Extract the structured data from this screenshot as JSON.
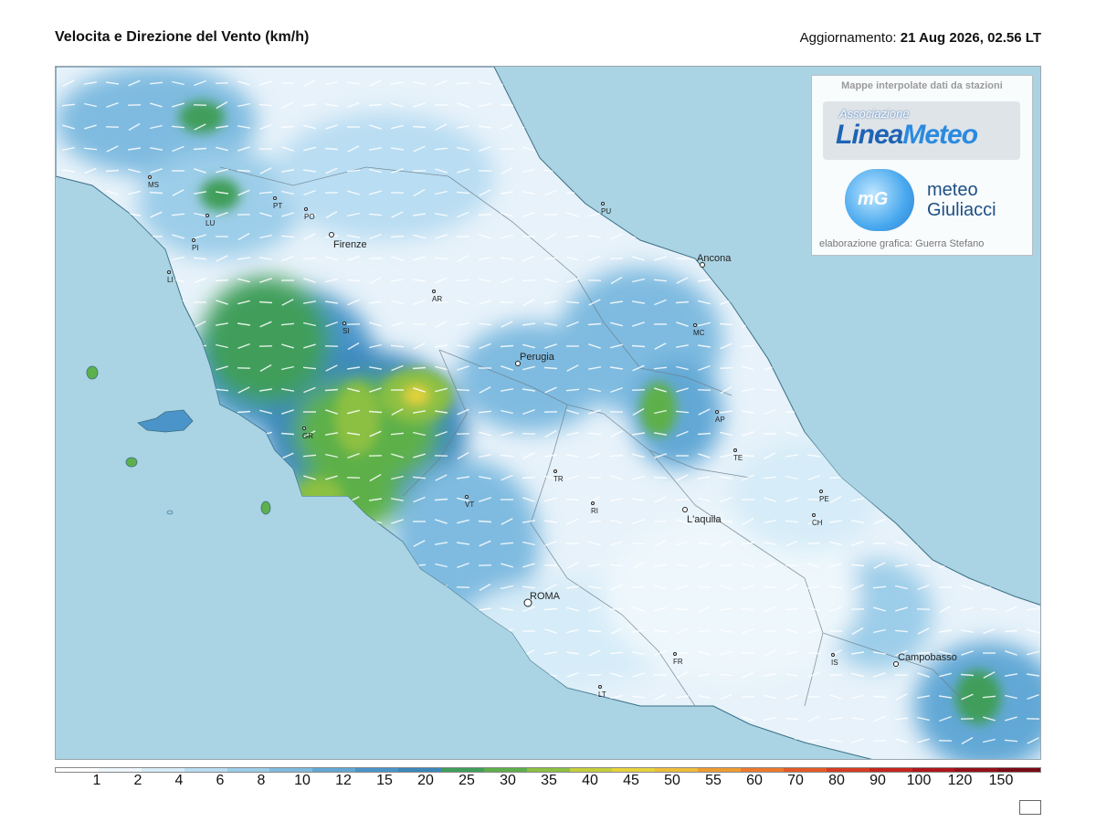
{
  "header": {
    "title": "Velocita e Direzione del Vento  (km/h)",
    "updated_label": "Aggiornamento:",
    "updated_value": "21 Aug 2026, 02.56 LT"
  },
  "credits": {
    "heading": "Mappe interpolate dati da stazioni",
    "logo1_small": "Associazione",
    "logo1_big_a": "Linea",
    "logo1_big_b": "Meteo",
    "logo2_letters": "mG",
    "logo2_line1": "meteo",
    "logo2_line2": "Giuliacci",
    "footer": "elaborazione grafica: Guerra Stefano"
  },
  "colors": {
    "sea": "#aad3e3",
    "land_low": "#eef6fb",
    "land_mid": "#bfe0f2",
    "land_blue": "#6fb1dc",
    "land_green": "#58b44a",
    "land_yellow": "#e6d24a"
  },
  "scale": {
    "labels": [
      "1",
      "2",
      "4",
      "6",
      "8",
      "10",
      "12",
      "15",
      "20",
      "25",
      "30",
      "35",
      "40",
      "45",
      "50",
      "55",
      "60",
      "70",
      "80",
      "90",
      "100",
      "120",
      "150"
    ],
    "colors": [
      "#ffffff",
      "#eef7fc",
      "#d6ecf8",
      "#b9ddf2",
      "#9ccde9",
      "#7fbbe0",
      "#62a8d6",
      "#4a94c9",
      "#3b87bb",
      "#3f9e5a",
      "#5db04a",
      "#8cc043",
      "#c4cf3d",
      "#e7d33d",
      "#eebd3a",
      "#ef9c33",
      "#ec7a2d",
      "#e45a27",
      "#d53d22",
      "#c3261e",
      "#ad171b",
      "#931019",
      "#7a0a17"
    ]
  },
  "map": {
    "cities": [
      {
        "name": "Firenze",
        "major": true
      },
      {
        "name": "Perugia",
        "major": true
      },
      {
        "name": "Ancona",
        "major": true
      },
      {
        "name": "L'aquila",
        "major": true
      },
      {
        "name": "ROMA",
        "major": true
      },
      {
        "name": "Campobasso",
        "major": true
      },
      {
        "name": "MS",
        "major": false
      },
      {
        "name": "LU",
        "major": false
      },
      {
        "name": "PI",
        "major": false
      },
      {
        "name": "LI",
        "major": false
      },
      {
        "name": "PT",
        "major": false
      },
      {
        "name": "PO",
        "major": false
      },
      {
        "name": "AR",
        "major": false
      },
      {
        "name": "SI",
        "major": false
      },
      {
        "name": "GR",
        "major": false
      },
      {
        "name": "PU",
        "major": false
      },
      {
        "name": "MC",
        "major": false
      },
      {
        "name": "AP",
        "major": false
      },
      {
        "name": "TE",
        "major": false
      },
      {
        "name": "PE",
        "major": false
      },
      {
        "name": "CH",
        "major": false
      },
      {
        "name": "TR",
        "major": false
      },
      {
        "name": "VT",
        "major": false
      },
      {
        "name": "RI",
        "major": false
      },
      {
        "name": "IS",
        "major": false
      },
      {
        "name": "FR",
        "major": false
      },
      {
        "name": "LT",
        "major": false
      }
    ]
  }
}
